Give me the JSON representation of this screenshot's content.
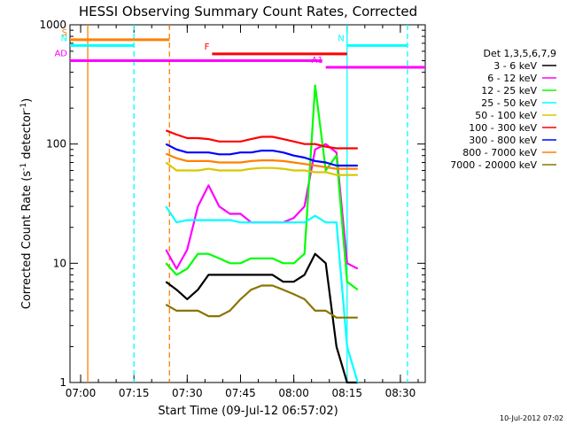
{
  "chart_data": {
    "type": "line",
    "title": "HESSI Observing Summary Count Rates, Corrected",
    "xlabel": "Start Time (09-Jul-12 06:57:02)",
    "ylabel_parts": [
      "Corrected Count Rate (s",
      "-1",
      " detector",
      "-1",
      ")"
    ],
    "y_scale": "log",
    "ylim": [
      1,
      1000
    ],
    "xlim": [
      "06:57",
      "08:37"
    ],
    "x_ticks": [
      "07:00",
      "07:15",
      "07:30",
      "07:45",
      "08:00",
      "08:15",
      "08:30"
    ],
    "y_ticks": [
      "1",
      "10",
      "100",
      "1000"
    ],
    "footer": "10-Jul-2012 07:02",
    "legend": {
      "header": "Det 1,3,5,6,7,9",
      "placement": "right",
      "entries": [
        {
          "label": "3 - 6 keV",
          "color": "#000000"
        },
        {
          "label": "6 - 12 keV",
          "color": "#ff00ff"
        },
        {
          "label": "12 - 25 keV",
          "color": "#00ff00"
        },
        {
          "label": "25 - 50 keV",
          "color": "#00ffff"
        },
        {
          "label": "50 - 100 keV",
          "color": "#d8c800"
        },
        {
          "label": "100 - 300 keV",
          "color": "#ff0000"
        },
        {
          "label": "300 - 800 keV",
          "color": "#0000ff"
        },
        {
          "label": "800 - 7000 keV",
          "color": "#ff8000"
        },
        {
          "label": "7000 - 20000 keV",
          "color": "#8b7500"
        }
      ]
    },
    "flags": [
      {
        "label": "S",
        "color": "#ff8000",
        "start": "06:57",
        "end": "07:25",
        "level": 750
      },
      {
        "label": "N",
        "color": "#00ffff",
        "start": "06:57",
        "end": "07:15",
        "level": 670
      },
      {
        "label": "N",
        "color": "#00ffff",
        "start": "08:15",
        "end": "08:32",
        "level": 670
      },
      {
        "label": "F",
        "color": "#ff0000",
        "start": "07:37",
        "end": "08:15",
        "level": 570
      },
      {
        "label": "AD",
        "color": "#ff00ff",
        "start": "06:57",
        "end": "08:08",
        "level": 500
      },
      {
        "label": "A1",
        "color": "#ff00ff",
        "start": "08:09",
        "end": "08:37",
        "level": 440
      }
    ],
    "vlines": [
      {
        "time": "07:02",
        "color": "#ff8000",
        "style": "solid"
      },
      {
        "time": "07:15",
        "color": "#00ffff",
        "style": "dashed"
      },
      {
        "time": "07:25",
        "color": "#ff8000",
        "style": "dashed"
      },
      {
        "time": "08:15",
        "color": "#00ffff",
        "style": "solid"
      },
      {
        "time": "08:32",
        "color": "#00ffff",
        "style": "dashed"
      }
    ],
    "x_minutes": [
      27,
      30,
      33,
      36,
      39,
      42,
      45,
      48,
      51,
      54,
      57,
      60,
      63,
      66,
      69,
      72,
      75,
      78,
      81
    ],
    "series": [
      {
        "name": "3 - 6 keV",
        "color": "#000000",
        "values": [
          7,
          6,
          5,
          6,
          8,
          8,
          8,
          8,
          8,
          8,
          8,
          7,
          7,
          8,
          12,
          10,
          2,
          1,
          1
        ]
      },
      {
        "name": "6 - 12 keV",
        "color": "#ff00ff",
        "values": [
          13,
          9,
          13,
          30,
          45,
          30,
          26,
          26,
          22,
          22,
          22,
          22,
          24,
          30,
          90,
          100,
          85,
          10,
          9
        ]
      },
      {
        "name": "12 - 25 keV",
        "color": "#00ff00",
        "values": [
          10,
          8,
          9,
          12,
          12,
          11,
          10,
          10,
          11,
          11,
          11,
          10,
          10,
          12,
          310,
          60,
          80,
          7,
          6
        ]
      },
      {
        "name": "25 - 50 keV",
        "color": "#00ffff",
        "values": [
          30,
          22,
          23,
          23,
          23,
          23,
          23,
          22,
          22,
          22,
          22,
          22,
          22,
          22,
          25,
          22,
          22,
          2,
          1
        ]
      },
      {
        "name": "50 - 100 keV",
        "color": "#d8c800",
        "values": [
          70,
          60,
          60,
          60,
          62,
          60,
          60,
          60,
          62,
          63,
          63,
          62,
          60,
          60,
          58,
          58,
          55,
          55,
          55
        ]
      },
      {
        "name": "100 - 300 keV",
        "color": "#ff0000",
        "values": [
          130,
          120,
          112,
          112,
          110,
          105,
          105,
          105,
          110,
          115,
          115,
          110,
          105,
          100,
          100,
          95,
          92,
          92,
          92
        ]
      },
      {
        "name": "300 - 800 keV",
        "color": "#0000ff",
        "values": [
          100,
          90,
          85,
          85,
          85,
          82,
          82,
          85,
          85,
          88,
          88,
          85,
          80,
          77,
          72,
          70,
          66,
          66,
          66
        ]
      },
      {
        "name": "800 - 7000 keV",
        "color": "#ff8000",
        "values": [
          83,
          76,
          72,
          72,
          72,
          70,
          70,
          70,
          72,
          73,
          73,
          72,
          70,
          68,
          66,
          64,
          62,
          62,
          62
        ]
      },
      {
        "name": "7000 - 20000 keV",
        "color": "#8b7500",
        "values": [
          4.5,
          4,
          4,
          4,
          3.6,
          3.6,
          4,
          5,
          6,
          6.5,
          6.5,
          6,
          5.5,
          5,
          4,
          4,
          3.5,
          3.5,
          3.5
        ]
      }
    ]
  }
}
